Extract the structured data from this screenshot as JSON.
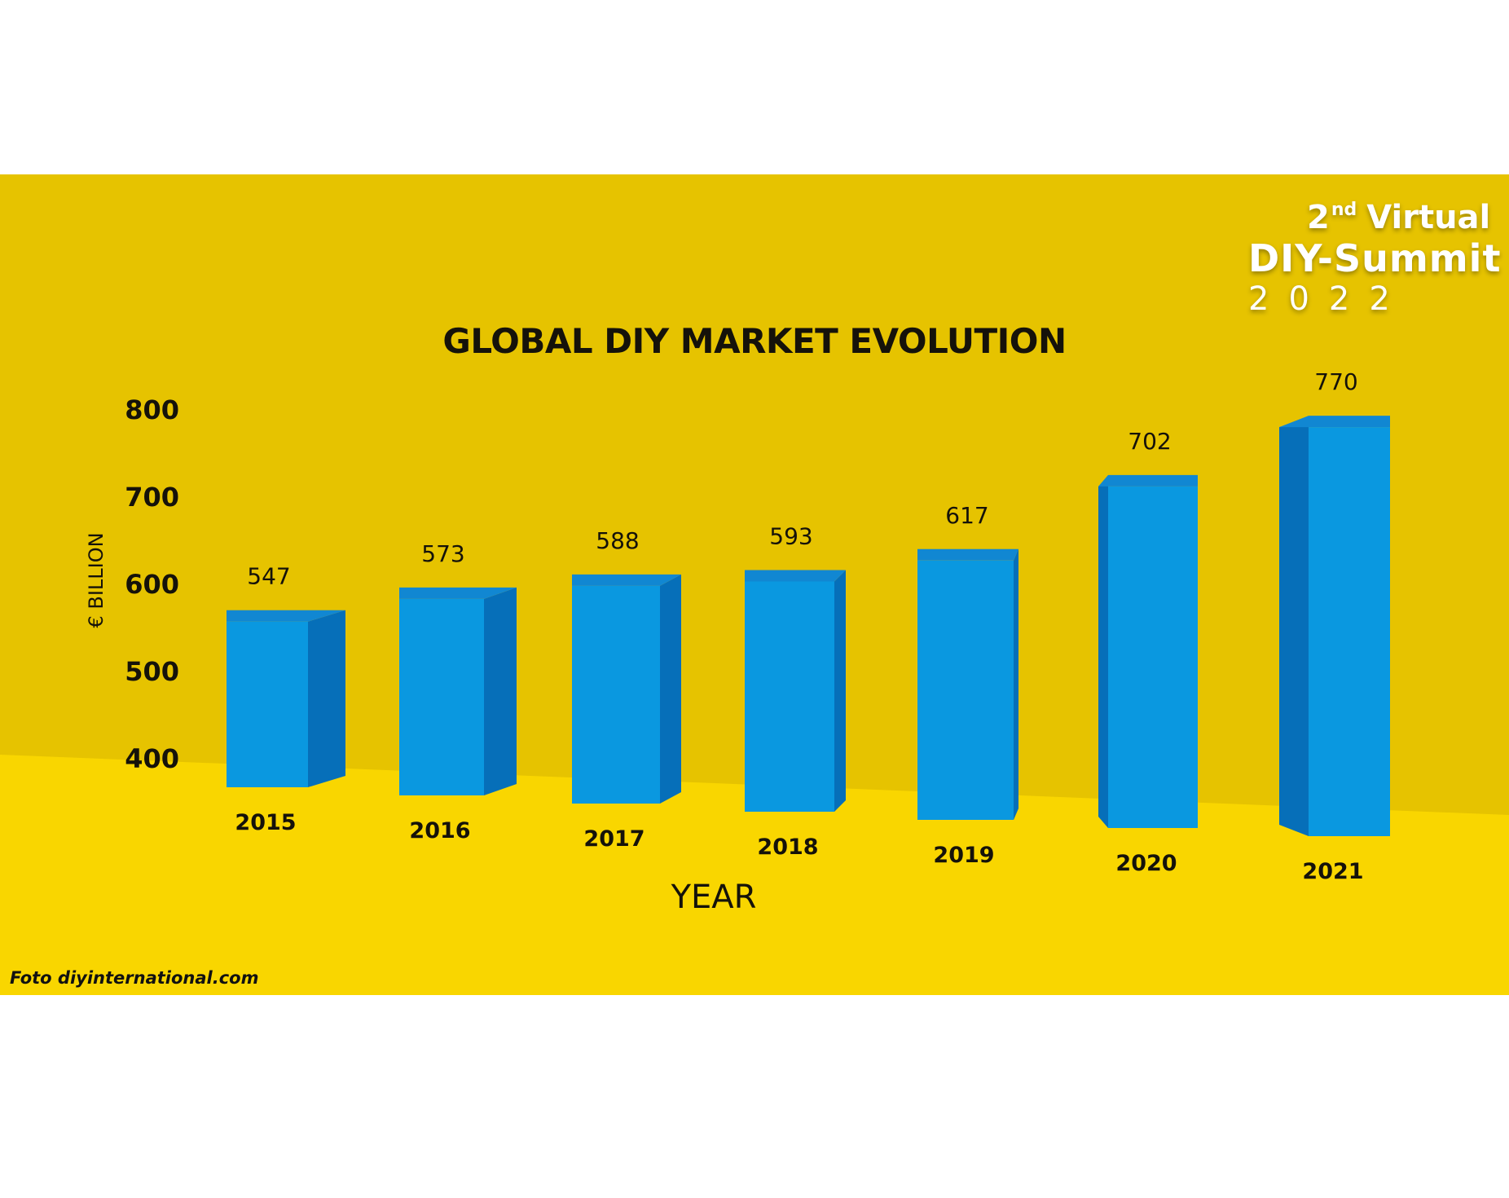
{
  "logo": {
    "line1_ordinal": "2",
    "line1_suffix": "nd",
    "line1_word": "Virtual",
    "line2": "DIY-Summit",
    "line3": "2022"
  },
  "credit": "Foto diyinternational.com",
  "colors": {
    "background": "#e6c300",
    "floor": "#f9d600",
    "bar_front": "#0a98e0",
    "bar_side": "#066fb9",
    "bar_top": "#1187d2",
    "text": "#15120a"
  },
  "chart_data": {
    "type": "bar",
    "title": "GLOBAL DIY MARKET EVOLUTION",
    "xlabel": "YEAR",
    "ylabel": "€ BILLION",
    "categories": [
      "2015",
      "2016",
      "2017",
      "2018",
      "2019",
      "2020",
      "2021"
    ],
    "values": [
      547,
      573,
      588,
      593,
      617,
      702,
      770
    ],
    "value_labels": [
      "547",
      "573",
      "588",
      "593",
      "617",
      "702",
      "770"
    ],
    "y_ticks": [
      "400",
      "500",
      "600",
      "700",
      "800"
    ],
    "ylim": [
      400,
      800
    ],
    "grid": false,
    "legend": "none",
    "style": "3d"
  }
}
